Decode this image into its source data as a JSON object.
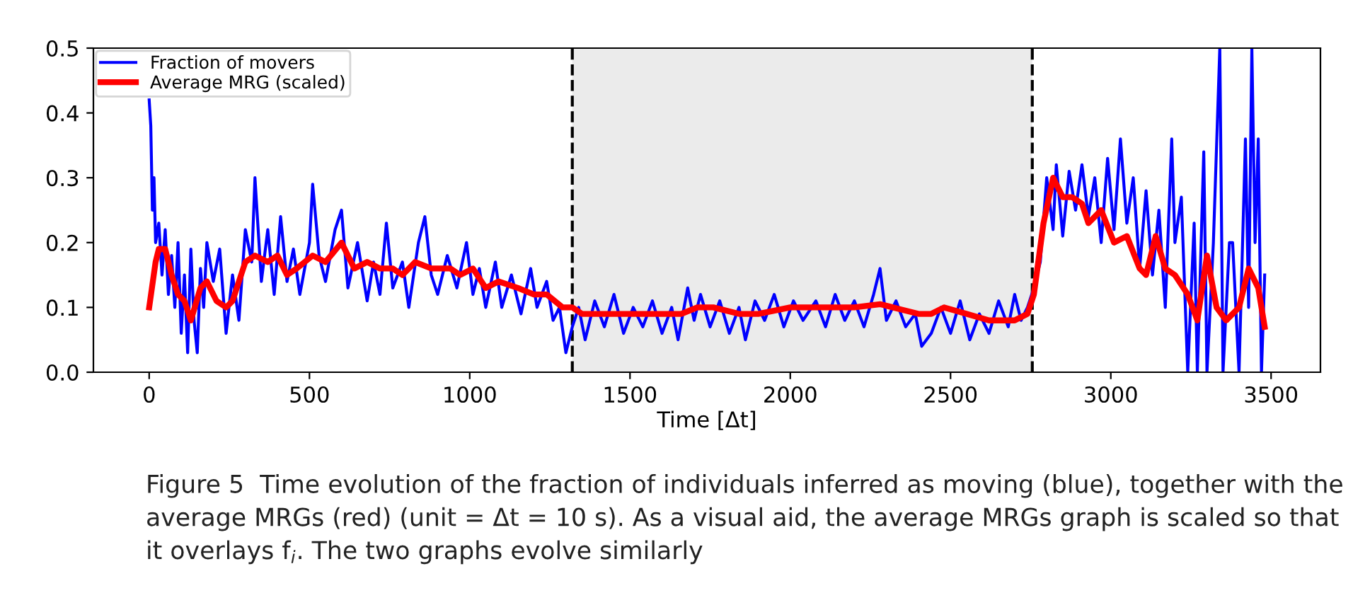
{
  "chart_data": {
    "type": "line",
    "xlabel": "Time [Δt]",
    "xlim": [
      -174,
      3654
    ],
    "xticks": [
      0,
      500,
      1000,
      1500,
      2000,
      2500,
      3000,
      3500
    ],
    "ylim": [
      0,
      0.5
    ],
    "yticks": [
      {
        "value": 0,
        "label": "0.0"
      },
      0.1,
      0.2,
      0.3,
      0.4,
      0.5
    ],
    "grid": false,
    "legend": "top left",
    "line_style": "solid",
    "marker": "none",
    "bands": [
      {
        "axis": "x",
        "from": 1320,
        "to": 2755,
        "color": "#ebebeb"
      }
    ],
    "ref_lines": [
      {
        "axis": "x",
        "value": 1320,
        "color": "#000000",
        "line_style": "dashed"
      },
      {
        "axis": "x",
        "value": 2755,
        "color": "#000000",
        "line_style": "dashed"
      }
    ],
    "series": [
      {
        "name": "Fraction of movers",
        "color": "#0000ff",
        "x": [
          0,
          5,
          10,
          15,
          20,
          30,
          40,
          50,
          60,
          70,
          80,
          90,
          100,
          110,
          120,
          130,
          140,
          150,
          160,
          170,
          180,
          200,
          220,
          240,
          260,
          280,
          300,
          320,
          330,
          350,
          370,
          390,
          410,
          430,
          450,
          470,
          500,
          510,
          530,
          550,
          580,
          600,
          620,
          650,
          680,
          700,
          720,
          740,
          760,
          790,
          810,
          840,
          860,
          880,
          900,
          930,
          960,
          990,
          1010,
          1030,
          1050,
          1080,
          1100,
          1130,
          1160,
          1190,
          1210,
          1240,
          1260,
          1280,
          1300,
          1320,
          1340,
          1360,
          1390,
          1420,
          1450,
          1480,
          1510,
          1540,
          1570,
          1600,
          1630,
          1650,
          1680,
          1700,
          1720,
          1750,
          1780,
          1810,
          1840,
          1860,
          1890,
          1920,
          1950,
          1980,
          2010,
          2040,
          2080,
          2110,
          2140,
          2170,
          2200,
          2230,
          2260,
          2280,
          2300,
          2330,
          2360,
          2390,
          2410,
          2440,
          2470,
          2500,
          2530,
          2560,
          2590,
          2620,
          2650,
          2680,
          2700,
          2720,
          2740,
          2760,
          2780,
          2800,
          2820,
          2830,
          2850,
          2870,
          2890,
          2910,
          2930,
          2950,
          2970,
          2990,
          3010,
          3030,
          3050,
          3070,
          3090,
          3110,
          3130,
          3150,
          3170,
          3190,
          3200,
          3220,
          3240,
          3260,
          3270,
          3290,
          3300,
          3320,
          3340,
          3350,
          3370,
          3380,
          3400,
          3420,
          3430,
          3440,
          3450,
          3460,
          3470,
          3480
        ],
        "values": [
          0.42,
          0.38,
          0.25,
          0.3,
          0.2,
          0.23,
          0.15,
          0.22,
          0.12,
          0.18,
          0.1,
          0.2,
          0.06,
          0.15,
          0.03,
          0.19,
          0.08,
          0.03,
          0.16,
          0.1,
          0.2,
          0.14,
          0.19,
          0.06,
          0.15,
          0.08,
          0.22,
          0.17,
          0.3,
          0.14,
          0.22,
          0.12,
          0.24,
          0.14,
          0.19,
          0.12,
          0.2,
          0.29,
          0.18,
          0.14,
          0.22,
          0.25,
          0.13,
          0.2,
          0.11,
          0.17,
          0.12,
          0.23,
          0.13,
          0.17,
          0.1,
          0.2,
          0.24,
          0.15,
          0.12,
          0.18,
          0.13,
          0.2,
          0.12,
          0.16,
          0.1,
          0.17,
          0.1,
          0.15,
          0.09,
          0.16,
          0.1,
          0.14,
          0.08,
          0.1,
          0.03,
          0.07,
          0.1,
          0.05,
          0.11,
          0.07,
          0.12,
          0.06,
          0.1,
          0.07,
          0.11,
          0.06,
          0.1,
          0.05,
          0.13,
          0.08,
          0.12,
          0.07,
          0.11,
          0.06,
          0.1,
          0.05,
          0.11,
          0.08,
          0.12,
          0.07,
          0.11,
          0.08,
          0.11,
          0.07,
          0.12,
          0.08,
          0.11,
          0.07,
          0.12,
          0.16,
          0.08,
          0.11,
          0.07,
          0.09,
          0.04,
          0.06,
          0.1,
          0.06,
          0.11,
          0.05,
          0.09,
          0.06,
          0.11,
          0.07,
          0.12,
          0.08,
          0.1,
          0.13,
          0.17,
          0.3,
          0.22,
          0.32,
          0.21,
          0.31,
          0.25,
          0.32,
          0.24,
          0.3,
          0.2,
          0.33,
          0.22,
          0.36,
          0.23,
          0.3,
          0.16,
          0.28,
          0.15,
          0.25,
          0.1,
          0.36,
          0.2,
          0.27,
          0.0,
          0.23,
          0.0,
          0.34,
          0.0,
          0.2,
          0.5,
          0.0,
          0.2,
          0.2,
          0.0,
          0.36,
          0.1,
          0.5,
          0.2,
          0.36,
          0.0,
          0.15
        ]
      },
      {
        "name": "Average MRG (scaled)",
        "color": "#ff0000",
        "x": [
          0,
          20,
          30,
          50,
          70,
          90,
          110,
          130,
          160,
          180,
          210,
          240,
          260,
          300,
          330,
          370,
          400,
          430,
          460,
          510,
          550,
          600,
          640,
          680,
          720,
          760,
          790,
          830,
          880,
          940,
          970,
          1010,
          1050,
          1090,
          1150,
          1200,
          1240,
          1290,
          1320,
          1350,
          1380,
          1430,
          1500,
          1560,
          1620,
          1660,
          1710,
          1760,
          1840,
          1900,
          2000,
          2100,
          2200,
          2280,
          2320,
          2400,
          2440,
          2480,
          2550,
          2620,
          2700,
          2740,
          2760,
          2790,
          2820,
          2850,
          2880,
          2910,
          2930,
          2970,
          3010,
          3050,
          3090,
          3110,
          3140,
          3170,
          3200,
          3240,
          3270,
          3300,
          3330,
          3360,
          3400,
          3430,
          3460,
          3480
        ],
        "values": [
          0.1,
          0.17,
          0.19,
          0.19,
          0.15,
          0.12,
          0.11,
          0.08,
          0.13,
          0.14,
          0.11,
          0.1,
          0.11,
          0.17,
          0.18,
          0.17,
          0.18,
          0.15,
          0.16,
          0.18,
          0.17,
          0.2,
          0.16,
          0.17,
          0.16,
          0.16,
          0.15,
          0.17,
          0.16,
          0.16,
          0.15,
          0.16,
          0.13,
          0.14,
          0.13,
          0.12,
          0.12,
          0.1,
          0.1,
          0.09,
          0.09,
          0.09,
          0.09,
          0.09,
          0.09,
          0.09,
          0.1,
          0.1,
          0.09,
          0.09,
          0.1,
          0.1,
          0.1,
          0.105,
          0.1,
          0.09,
          0.09,
          0.1,
          0.09,
          0.08,
          0.08,
          0.09,
          0.12,
          0.23,
          0.3,
          0.27,
          0.27,
          0.26,
          0.23,
          0.25,
          0.2,
          0.21,
          0.16,
          0.15,
          0.21,
          0.16,
          0.15,
          0.12,
          0.08,
          0.18,
          0.1,
          0.08,
          0.1,
          0.16,
          0.13,
          0.07
        ]
      }
    ],
    "annotations": [
      "Figure 5  Time evolution of the fraction of individuals inferred as moving (blue), together with the average MRGs (red) (unit = Δt = 10 s). As a visual aid, the average MRGs graph is scaled so that it overlays f$_{i}$. The two graphs evolve similarly"
    ]
  }
}
